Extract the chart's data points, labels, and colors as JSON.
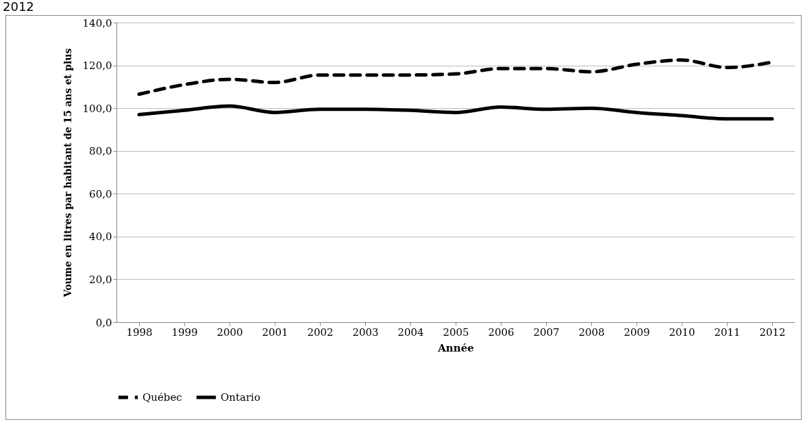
{
  "chart_data": {
    "type": "line",
    "title": "2012",
    "xlabel": "Année",
    "ylabel": "Voume en litres par habitant de 15 ans et plus",
    "categories": [
      "1998",
      "1999",
      "2000",
      "2001",
      "2002",
      "2003",
      "2004",
      "2005",
      "2006",
      "2007",
      "2008",
      "2009",
      "2010",
      "2011",
      "2012"
    ],
    "series": [
      {
        "name": "Québec",
        "color": "#000000",
        "line_style": "dashed",
        "values": [
          106.5,
          111,
          113.5,
          112,
          115.5,
          115.5,
          115.5,
          116,
          118.5,
          118.5,
          117,
          120.5,
          122.5,
          119,
          121.5
        ]
      },
      {
        "name": "Ontario",
        "color": "#000000",
        "line_style": "solid",
        "values": [
          97,
          99,
          101,
          98,
          99.5,
          99.5,
          99,
          98,
          100.5,
          99.5,
          100,
          98,
          96.5,
          95,
          95
        ]
      }
    ],
    "ylim": [
      0,
      140
    ],
    "yticks": [
      {
        "value": 0,
        "label": "0,0"
      },
      {
        "value": 20,
        "label": "20,0"
      },
      {
        "value": 40,
        "label": "40,0"
      },
      {
        "value": 60,
        "label": "60,0"
      },
      {
        "value": 80,
        "label": "80,0"
      },
      {
        "value": 100,
        "label": "100,0"
      },
      {
        "value": 120,
        "label": "120,0"
      },
      {
        "value": 140,
        "label": "140,0"
      }
    ],
    "grid": "y",
    "legend": "bottom",
    "marker": "none"
  }
}
